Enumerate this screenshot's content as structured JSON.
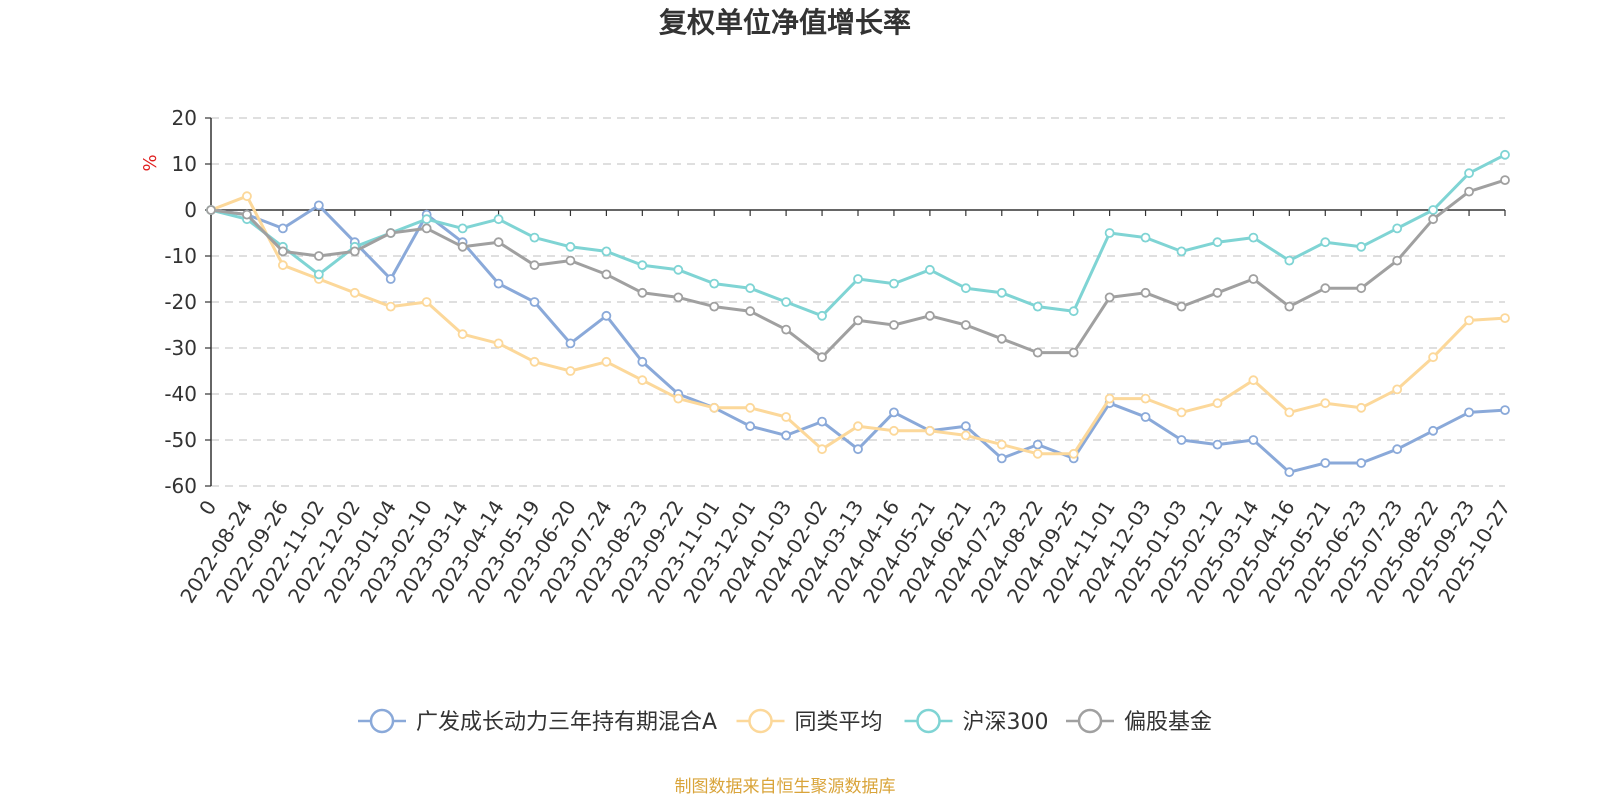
{
  "chart_data": {
    "type": "line",
    "title": "复权单位净值增长率",
    "ylabel": "%",
    "ylim": [
      -60,
      20
    ],
    "yticks": [
      20,
      10,
      0,
      -10,
      -20,
      -30,
      -40,
      -50,
      -60
    ],
    "grid": true,
    "legend_position": "bottom",
    "categories": [
      "0",
      "2022-08-24",
      "2022-09-26",
      "2022-11-02",
      "2022-12-02",
      "2023-01-04",
      "2023-02-10",
      "2023-03-14",
      "2023-04-14",
      "2023-05-19",
      "2023-06-20",
      "2023-07-24",
      "2023-08-23",
      "2023-09-22",
      "2023-11-01",
      "2023-12-01",
      "2024-01-03",
      "2024-02-02",
      "2024-03-13",
      "2024-04-16",
      "2024-05-21",
      "2024-06-21",
      "2024-07-23",
      "2024-08-22",
      "2024-09-25",
      "2024-11-01",
      "2024-12-03",
      "2025-01-03",
      "2025-02-12",
      "2025-03-14",
      "2025-04-16",
      "2025-05-21",
      "2025-06-23",
      "2025-07-23",
      "2025-08-22",
      "2025-09-23",
      "2025-10-27"
    ],
    "series": [
      {
        "name": "广发成长动力三年持有期混合A",
        "color": "#8aa9d9",
        "values": [
          0,
          -1,
          -4,
          1,
          -7,
          -15,
          -1,
          -7,
          -16,
          -20,
          -29,
          -23,
          -33,
          -40,
          -43,
          -47,
          -49,
          -46,
          -52,
          -44,
          -48,
          -47,
          -54,
          -51,
          -54,
          -42,
          -45,
          -50,
          -51,
          -50,
          -57,
          -55,
          -55,
          -52,
          -48,
          -44,
          -43.5
        ]
      },
      {
        "name": "同类平均",
        "color": "#fcd89a",
        "values": [
          0,
          3,
          -12,
          -15,
          -18,
          -21,
          -20,
          -27,
          -29,
          -33,
          -35,
          -33,
          -37,
          -41,
          -43,
          -43,
          -45,
          -52,
          -47,
          -48,
          -48,
          -49,
          -51,
          -53,
          -53,
          -41,
          -41,
          -44,
          -42,
          -37,
          -44,
          -42,
          -43,
          -39,
          -32,
          -24,
          -23.5
        ]
      },
      {
        "name": "沪深300",
        "color": "#7fd4d4",
        "values": [
          0,
          -2,
          -8,
          -14,
          -8,
          -5,
          -2,
          -4,
          -2,
          -6,
          -8,
          -9,
          -12,
          -13,
          -16,
          -17,
          -20,
          -23,
          -15,
          -16,
          -13,
          -17,
          -18,
          -21,
          -22,
          -5,
          -6,
          -9,
          -7,
          -6,
          -11,
          -7,
          -8,
          -4,
          0,
          8,
          12
        ]
      },
      {
        "name": "偏股基金",
        "color": "#a0a0a0",
        "values": [
          0,
          -1,
          -9,
          -10,
          -9,
          -5,
          -4,
          -8,
          -7,
          -12,
          -11,
          -14,
          -18,
          -19,
          -21,
          -22,
          -26,
          -32,
          -24,
          -25,
          -23,
          -25,
          -28,
          -31,
          -31,
          -19,
          -18,
          -21,
          -18,
          -15,
          -21,
          -17,
          -17,
          -11,
          -2,
          4,
          6.5
        ]
      }
    ],
    "source_note": "制图数据来自恒生聚源数据库",
    "source_color": "#d9a43a",
    "unit_color": "#e02020"
  }
}
